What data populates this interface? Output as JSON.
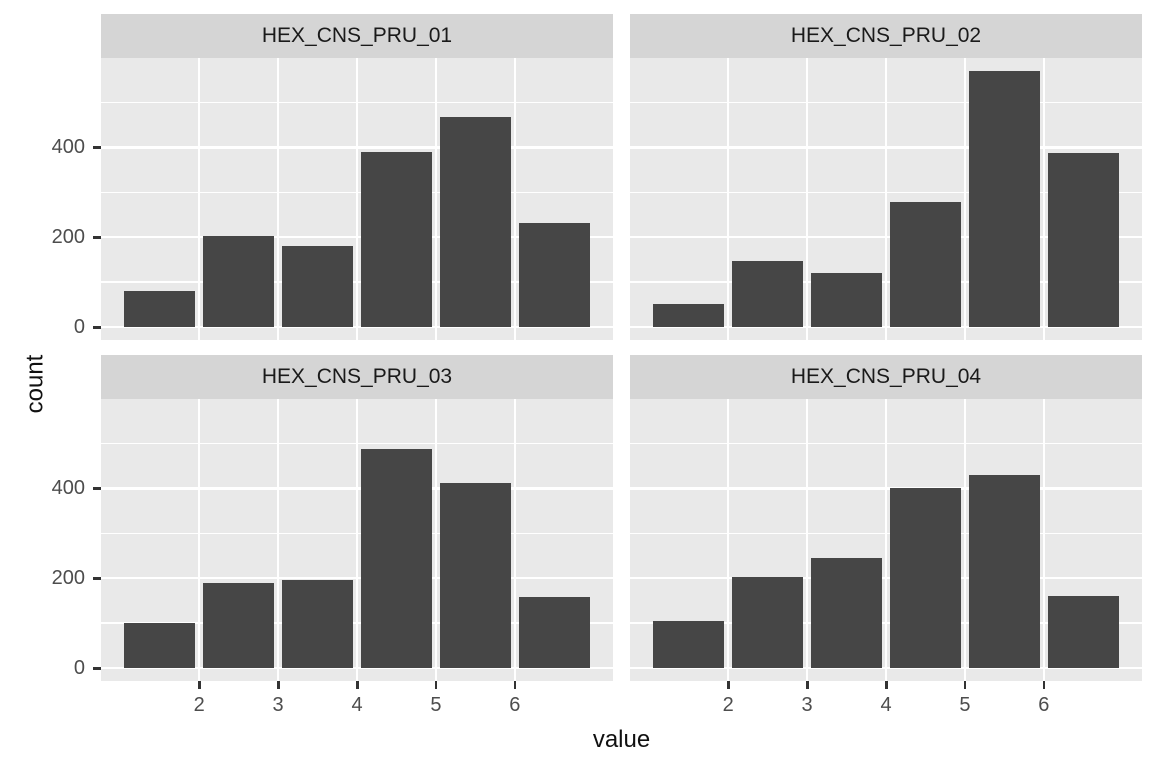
{
  "figure": {
    "kind": "faceted-histogram",
    "xlabel": "value",
    "ylabel": "count",
    "colors": {
      "bar_fill": "#464646",
      "panel_background": "#e9e9e9",
      "strip_background": "#d5d5d5",
      "grid_line": "#ffffff",
      "tick_mark": "#333333",
      "tick_label": "#4d4d4d",
      "title_text": "#111111",
      "page_background": "#ffffff"
    },
    "y_tick_labels": [
      "0",
      "200",
      "400"
    ],
    "x_tick_labels": [
      "2",
      "3",
      "4",
      "5",
      "6"
    ]
  },
  "chart_data": {
    "type": "bar",
    "title": "",
    "xlabel": "value",
    "ylabel": "count",
    "grid": true,
    "legend": "none",
    "facet_layout": "2x2",
    "x": [
      1.5,
      2.5,
      3.5,
      4.5,
      5.5,
      6.5
    ],
    "bar_width": 0.9,
    "xlim": [
      0.755,
      7.245
    ],
    "ylim": [
      -28.5,
      598.5
    ],
    "x_breaks_major": [
      2,
      3,
      4,
      5,
      6
    ],
    "y_breaks_major": [
      0,
      200,
      400
    ],
    "y_breaks_minor": [
      100,
      300,
      500
    ],
    "series": [
      {
        "name": "HEX_CNS_PRU_01",
        "values": [
          80,
          203,
          180,
          390,
          468,
          232
        ]
      },
      {
        "name": "HEX_CNS_PRU_02",
        "values": [
          52,
          148,
          121,
          278,
          570,
          387
        ]
      },
      {
        "name": "HEX_CNS_PRU_03",
        "values": [
          101,
          190,
          195,
          487,
          412,
          158
        ]
      },
      {
        "name": "HEX_CNS_PRU_04",
        "values": [
          106,
          203,
          244,
          400,
          430,
          160
        ]
      }
    ]
  }
}
